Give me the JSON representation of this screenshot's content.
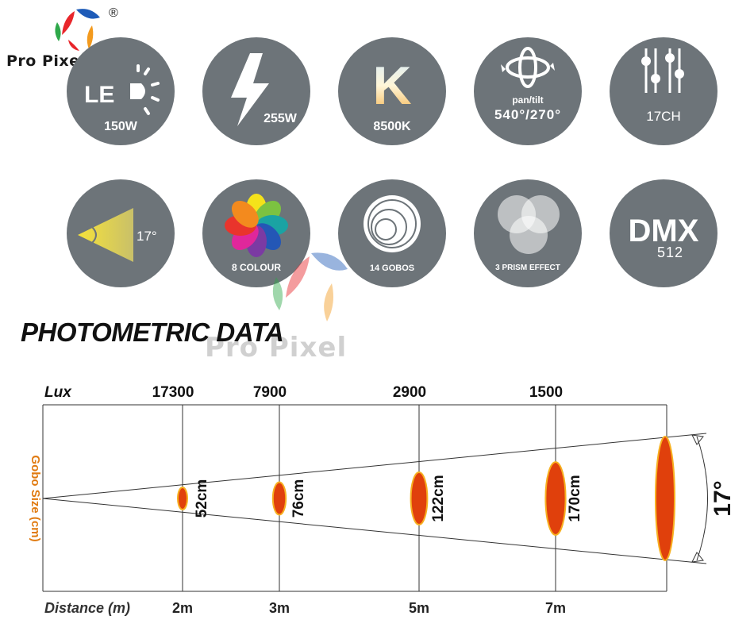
{
  "brand": {
    "name": "Pro Pixel",
    "registered": "®",
    "watermark": "Pro Pixel",
    "colors": {
      "red": "#e8262b",
      "green": "#2ea84a",
      "blue": "#1e5bb8",
      "orange": "#f39a1e"
    }
  },
  "features": [
    {
      "id": "led",
      "icon": "led-icon",
      "icon_text": "LE",
      "caption": "150W"
    },
    {
      "id": "power",
      "icon": "lightning-icon",
      "caption": "255W"
    },
    {
      "id": "temp",
      "icon": "kelvin-icon",
      "icon_text": "K",
      "caption": "8500K"
    },
    {
      "id": "pantilt",
      "icon": "pan-tilt-icon",
      "sub": "pan/tilt",
      "caption": "540°/270°"
    },
    {
      "id": "channels",
      "icon": "slider-icon",
      "caption": "17CH"
    },
    {
      "id": "angle",
      "icon": "beam-angle-icon",
      "caption": "17°"
    },
    {
      "id": "colour",
      "icon": "color-wheel-icon",
      "caption": "8 COLOUR"
    },
    {
      "id": "gobos",
      "icon": "gobo-icon",
      "caption": "14 GOBOS"
    },
    {
      "id": "prism",
      "icon": "prism-icon",
      "caption": "3 PRISM EFFECT"
    },
    {
      "id": "dmx",
      "icon": "dmx-icon",
      "icon_text": "DMX",
      "caption": "512"
    }
  ],
  "photometric": {
    "title": "PHOTOMETRIC DATA",
    "lux_label": "Lux",
    "distance_label": "Distance (m)",
    "gobo_label": "Gobo Size (cm)",
    "angle_label": "17°",
    "colors": {
      "spot": "#e0400c",
      "spot_edge": "#f7b020",
      "gobo_label": "#e07a10"
    },
    "points": [
      {
        "lux": "17300",
        "distance": "2m",
        "size": "52cm",
        "size_cm": 52
      },
      {
        "lux": "7900",
        "distance": "3m",
        "size": "76cm",
        "size_cm": 76
      },
      {
        "lux": "2900",
        "distance": "5m",
        "size": "122cm",
        "size_cm": 122
      },
      {
        "lux": "1500",
        "distance": "7m",
        "size": "170cm",
        "size_cm": 170
      }
    ]
  }
}
